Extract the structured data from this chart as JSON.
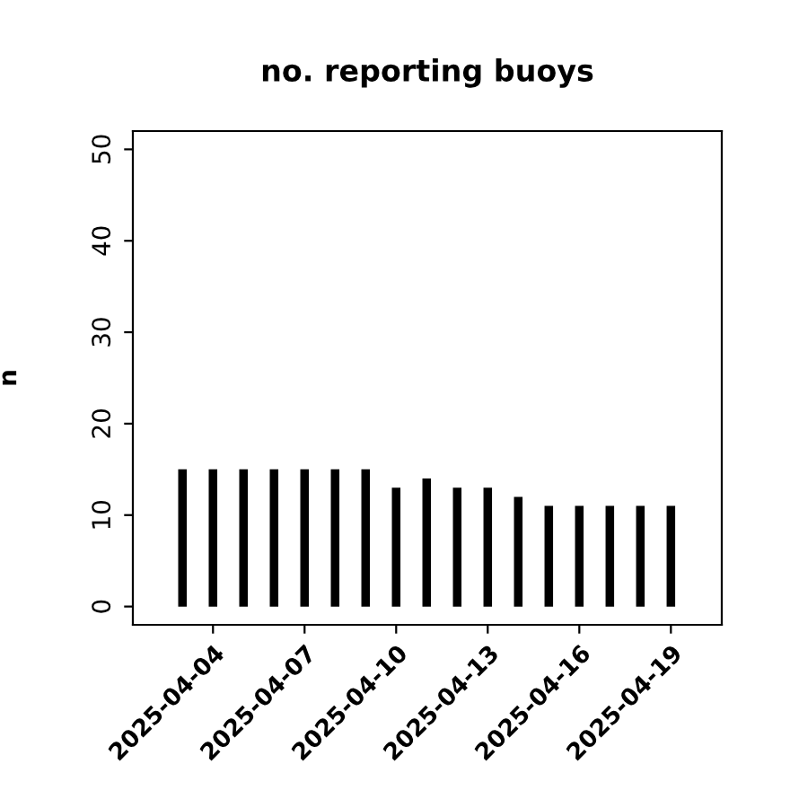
{
  "chart_data": {
    "type": "bar",
    "title": "no. reporting buoys",
    "ylabel": "n",
    "x": [
      "2025-04-03",
      "2025-04-04",
      "2025-04-05",
      "2025-04-06",
      "2025-04-07",
      "2025-04-08",
      "2025-04-09",
      "2025-04-10",
      "2025-04-11",
      "2025-04-12",
      "2025-04-13",
      "2025-04-14",
      "2025-04-15",
      "2025-04-16",
      "2025-04-17",
      "2025-04-18",
      "2025-04-19"
    ],
    "values": [
      15,
      15,
      15,
      15,
      15,
      15,
      15,
      13,
      14,
      13,
      13,
      12,
      11,
      11,
      11,
      11,
      11
    ],
    "color": "#000000",
    "xlim": [
      "2025-04-01T09:00",
      "2025-04-20T16:00"
    ],
    "xticks": [
      {
        "value": "2025-04-04",
        "label": "2025-04-04"
      },
      {
        "value": "2025-04-07",
        "label": "2025-04-07"
      },
      {
        "value": "2025-04-10",
        "label": "2025-04-10"
      },
      {
        "value": "2025-04-13",
        "label": "2025-04-13"
      },
      {
        "value": "2025-04-16",
        "label": "2025-04-16"
      },
      {
        "value": "2025-04-19",
        "label": "2025-04-19"
      }
    ],
    "ylim": [
      -2,
      52
    ],
    "yticks": [
      0,
      10,
      20,
      30,
      40,
      50
    ],
    "grid": false,
    "legend": false
  }
}
